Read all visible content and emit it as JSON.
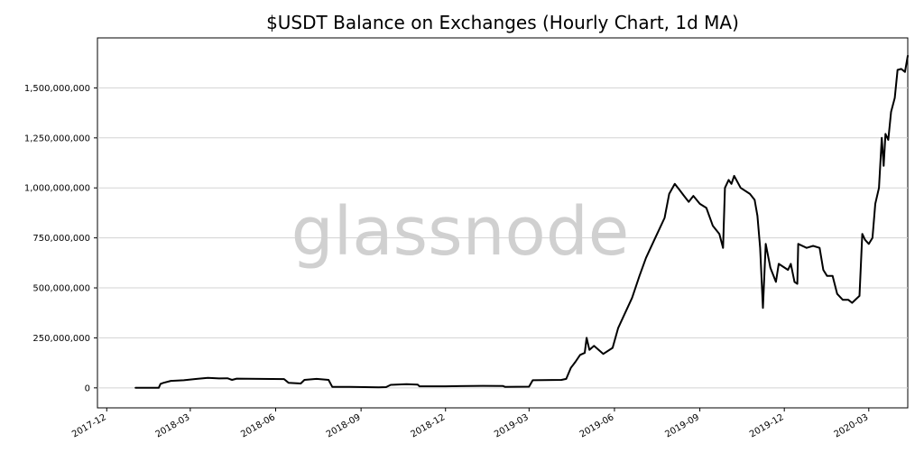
{
  "chart_data": {
    "type": "line",
    "title": "$USDT Balance on Exchanges (Hourly Chart, 1d MA)",
    "xlabel": "",
    "ylabel": "",
    "watermark": "glassnode",
    "grid": "horizontal",
    "xlim": [
      "2017-11-21",
      "2020-04-12"
    ],
    "ylim": [
      -100000000,
      1750000000
    ],
    "yticks": [
      0,
      250000000,
      500000000,
      750000000,
      1000000000,
      1250000000,
      1500000000
    ],
    "ytick_labels": [
      "0",
      "250,000,000",
      "500,000,000",
      "750,000,000",
      "1,000,000,000",
      "1,250,000,000",
      "1,500,000,000"
    ],
    "xticks": [
      "2017-12-01",
      "2018-03-01",
      "2018-06-01",
      "2018-09-01",
      "2018-12-01",
      "2019-03-01",
      "2019-06-01",
      "2019-09-01",
      "2019-12-01",
      "2020-03-01"
    ],
    "xtick_labels": [
      "2017-12",
      "2018-03",
      "2018-06",
      "2018-09",
      "2018-12",
      "2019-03",
      "2019-06",
      "2019-09",
      "2019-12",
      "2020-03"
    ],
    "series": [
      {
        "color": "#000000",
        "points": [
          [
            "2018-01-01",
            0
          ],
          [
            "2018-01-26",
            0
          ],
          [
            "2018-01-28",
            20000000
          ],
          [
            "2018-01-31",
            25000000
          ],
          [
            "2018-02-08",
            35000000
          ],
          [
            "2018-02-22",
            38000000
          ],
          [
            "2018-03-08",
            45000000
          ],
          [
            "2018-03-20",
            50000000
          ],
          [
            "2018-04-01",
            47000000
          ],
          [
            "2018-04-10",
            48000000
          ],
          [
            "2018-04-15",
            40000000
          ],
          [
            "2018-04-20",
            46000000
          ],
          [
            "2018-05-15",
            45000000
          ],
          [
            "2018-06-10",
            44000000
          ],
          [
            "2018-06-15",
            25000000
          ],
          [
            "2018-06-28",
            22000000
          ],
          [
            "2018-07-02",
            40000000
          ],
          [
            "2018-07-15",
            45000000
          ],
          [
            "2018-07-28",
            40000000
          ],
          [
            "2018-08-01",
            5000000
          ],
          [
            "2018-08-20",
            5000000
          ],
          [
            "2018-09-05",
            4000000
          ],
          [
            "2018-09-20",
            3000000
          ],
          [
            "2018-09-28",
            4000000
          ],
          [
            "2018-10-03",
            15000000
          ],
          [
            "2018-10-20",
            18000000
          ],
          [
            "2018-11-01",
            16000000
          ],
          [
            "2018-11-03",
            8000000
          ],
          [
            "2018-12-01",
            8000000
          ],
          [
            "2019-01-10",
            10000000
          ],
          [
            "2019-02-01",
            9000000
          ],
          [
            "2019-02-03",
            5000000
          ],
          [
            "2019-03-01",
            6000000
          ],
          [
            "2019-03-05",
            38000000
          ],
          [
            "2019-04-05",
            40000000
          ],
          [
            "2019-04-10",
            45000000
          ],
          [
            "2019-04-15",
            100000000
          ],
          [
            "2019-04-20",
            130000000
          ],
          [
            "2019-04-25",
            165000000
          ],
          [
            "2019-04-30",
            175000000
          ],
          [
            "2019-05-02",
            250000000
          ],
          [
            "2019-05-05",
            190000000
          ],
          [
            "2019-05-10",
            210000000
          ],
          [
            "2019-05-20",
            170000000
          ],
          [
            "2019-05-30",
            200000000
          ],
          [
            "2019-06-05",
            300000000
          ],
          [
            "2019-06-12",
            370000000
          ],
          [
            "2019-06-20",
            450000000
          ],
          [
            "2019-06-28",
            560000000
          ],
          [
            "2019-07-05",
            650000000
          ],
          [
            "2019-07-15",
            750000000
          ],
          [
            "2019-07-25",
            850000000
          ],
          [
            "2019-07-30",
            970000000
          ],
          [
            "2019-08-05",
            1020000000
          ],
          [
            "2019-08-10",
            990000000
          ],
          [
            "2019-08-15",
            960000000
          ],
          [
            "2019-08-20",
            930000000
          ],
          [
            "2019-08-25",
            960000000
          ],
          [
            "2019-09-01",
            920000000
          ],
          [
            "2019-09-08",
            900000000
          ],
          [
            "2019-09-15",
            810000000
          ],
          [
            "2019-09-22",
            770000000
          ],
          [
            "2019-09-26",
            700000000
          ],
          [
            "2019-09-28",
            1000000000
          ],
          [
            "2019-10-02",
            1040000000
          ],
          [
            "2019-10-05",
            1020000000
          ],
          [
            "2019-10-08",
            1060000000
          ],
          [
            "2019-10-15",
            1000000000
          ],
          [
            "2019-10-25",
            970000000
          ],
          [
            "2019-10-30",
            940000000
          ],
          [
            "2019-11-02",
            860000000
          ],
          [
            "2019-11-05",
            700000000
          ],
          [
            "2019-11-08",
            400000000
          ],
          [
            "2019-11-11",
            720000000
          ],
          [
            "2019-11-16",
            600000000
          ],
          [
            "2019-11-22",
            530000000
          ],
          [
            "2019-11-25",
            620000000
          ],
          [
            "2019-12-05",
            590000000
          ],
          [
            "2019-12-08",
            620000000
          ],
          [
            "2019-12-12",
            530000000
          ],
          [
            "2019-12-15",
            520000000
          ],
          [
            "2019-12-16",
            720000000
          ],
          [
            "2019-12-25",
            700000000
          ],
          [
            "2020-01-01",
            710000000
          ],
          [
            "2020-01-08",
            700000000
          ],
          [
            "2020-01-12",
            590000000
          ],
          [
            "2020-01-16",
            560000000
          ],
          [
            "2020-01-22",
            560000000
          ],
          [
            "2020-01-27",
            470000000
          ],
          [
            "2020-02-02",
            440000000
          ],
          [
            "2020-02-08",
            440000000
          ],
          [
            "2020-02-12",
            425000000
          ],
          [
            "2020-02-20",
            460000000
          ],
          [
            "2020-02-23",
            770000000
          ],
          [
            "2020-02-26",
            740000000
          ],
          [
            "2020-03-01",
            720000000
          ],
          [
            "2020-03-05",
            750000000
          ],
          [
            "2020-03-08",
            920000000
          ],
          [
            "2020-03-12",
            1000000000
          ],
          [
            "2020-03-15",
            1250000000
          ],
          [
            "2020-03-17",
            1110000000
          ],
          [
            "2020-03-19",
            1270000000
          ],
          [
            "2020-03-22",
            1240000000
          ],
          [
            "2020-03-25",
            1380000000
          ],
          [
            "2020-03-29",
            1450000000
          ],
          [
            "2020-04-01",
            1590000000
          ],
          [
            "2020-04-05",
            1595000000
          ],
          [
            "2020-04-09",
            1580000000
          ],
          [
            "2020-04-12",
            1660000000
          ]
        ]
      }
    ]
  }
}
